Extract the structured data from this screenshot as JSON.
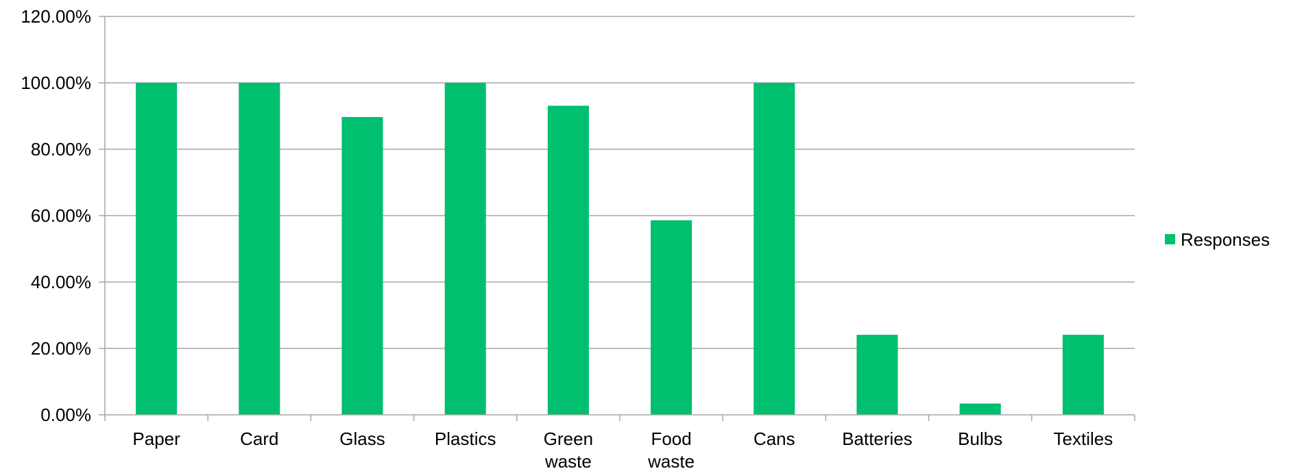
{
  "chart_data": {
    "type": "bar",
    "title": "",
    "xlabel": "",
    "ylabel": "",
    "categories": [
      [
        "Paper"
      ],
      [
        "Card"
      ],
      [
        "Glass"
      ],
      [
        "Plastics"
      ],
      [
        "Green",
        "waste"
      ],
      [
        "Food",
        "waste"
      ],
      [
        "Cans"
      ],
      [
        "Batteries"
      ],
      [
        "Bulbs"
      ],
      [
        "Textiles"
      ]
    ],
    "series": [
      {
        "name": "Responses",
        "color": "#00bf6f",
        "values": [
          100,
          100,
          89.7,
          100,
          93.1,
          58.6,
          100,
          24.1,
          3.4,
          24.1
        ]
      }
    ],
    "ylim": [
      0,
      120
    ],
    "yticks": [
      0,
      20,
      40,
      60,
      80,
      100,
      120
    ],
    "ytick_labels": [
      "0.00%",
      "20.00%",
      "40.00%",
      "60.00%",
      "80.00%",
      "100.00%",
      "120.00%"
    ],
    "grid": true,
    "legend_position": "right",
    "colors": {
      "grid": "#a6a6a6",
      "axis": "#a6a6a6",
      "text": "#000000"
    }
  }
}
